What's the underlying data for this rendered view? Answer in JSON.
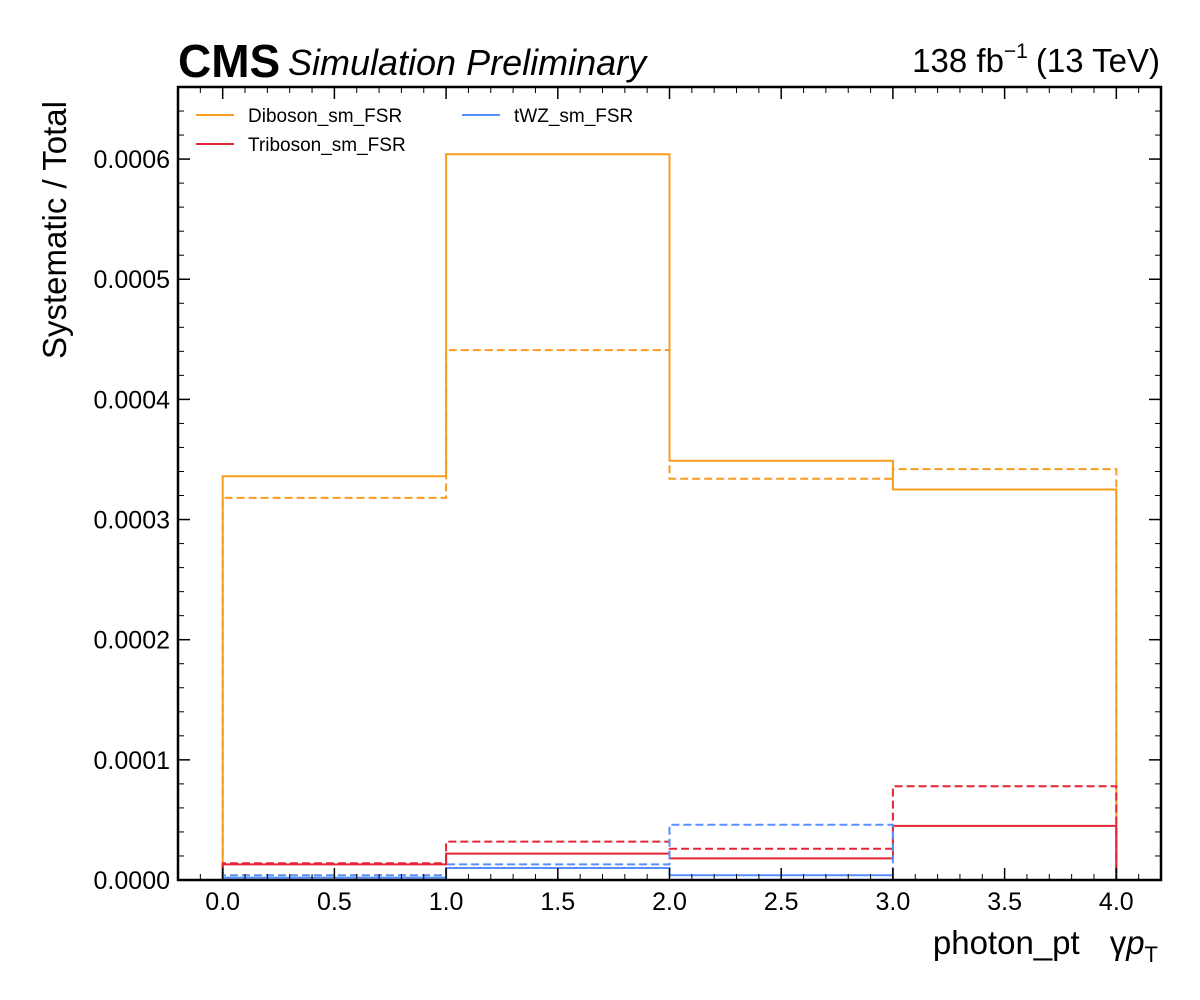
{
  "chart_data": {
    "type": "step",
    "experiment": "CMS",
    "status": "Simulation Preliminary",
    "lumi_label": "138 fb",
    "lumi_exponent": "−1",
    "energy_label": "(13 TeV)",
    "xlabel": "photon_pt",
    "xlabel_var": "γ",
    "xlabel_p": "p",
    "xlabel_sub": "T",
    "ylabel": "Systematic / Total",
    "xlim": [
      -0.2,
      4.2
    ],
    "ylim": [
      0.0,
      0.00066
    ],
    "x_ticks": [
      0.0,
      0.5,
      1.0,
      1.5,
      2.0,
      2.5,
      3.0,
      3.5,
      4.0
    ],
    "x_tick_labels": [
      "0.0",
      "0.5",
      "1.0",
      "1.5",
      "2.0",
      "2.5",
      "3.0",
      "3.5",
      "4.0"
    ],
    "y_ticks": [
      0.0,
      0.0001,
      0.0002,
      0.0003,
      0.0004,
      0.0005,
      0.0006
    ],
    "y_tick_labels": [
      "0.0000",
      "0.0001",
      "0.0002",
      "0.0003",
      "0.0004",
      "0.0005",
      "0.0006"
    ],
    "bin_edges": [
      0,
      1,
      2,
      3,
      4
    ],
    "legend_position": "top-left",
    "series": [
      {
        "name": "Diboson_sm_FSR",
        "color": "#f89c20",
        "up": [
          0.000336,
          0.000604,
          0.000349,
          0.000325
        ],
        "down": [
          0.000318,
          0.000441,
          0.000334,
          0.000342
        ]
      },
      {
        "name": "Triboson_sm_FSR",
        "color": "#e42536",
        "up": [
          1.3e-05,
          2.2e-05,
          1.8e-05,
          4.5e-05
        ],
        "down": [
          1.4e-05,
          3.2e-05,
          2.6e-05,
          7.8e-05
        ]
      },
      {
        "name": "tWZ_sm_FSR",
        "color": "#5790fc",
        "up": [
          2e-06,
          1e-05,
          4e-06,
          0.0
        ],
        "down": [
          4e-06,
          1.3e-05,
          4.6e-05,
          0.0
        ]
      }
    ]
  }
}
